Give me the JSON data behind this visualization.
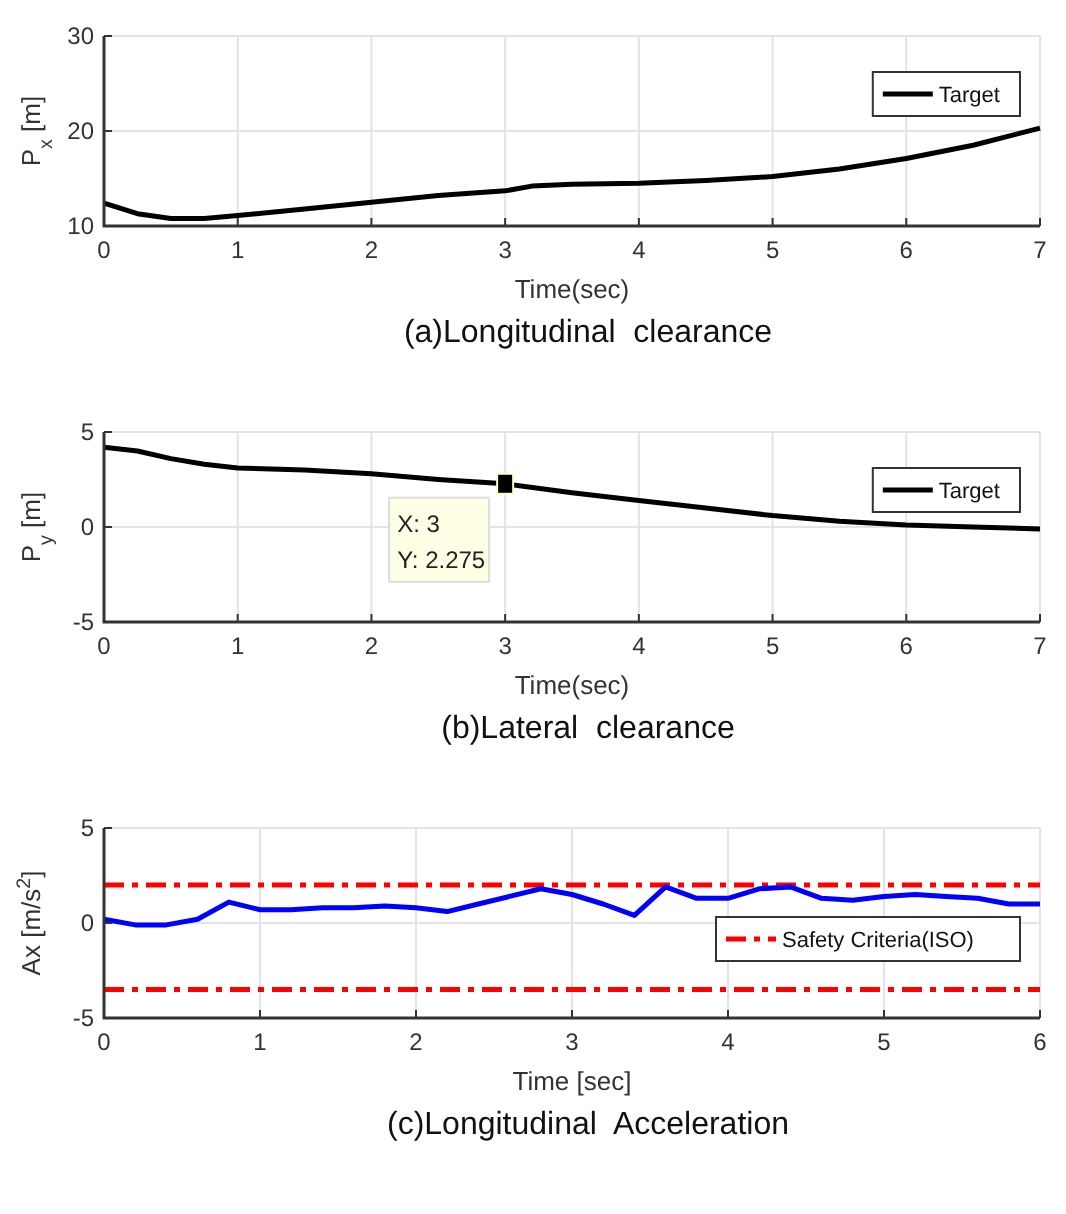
{
  "chart_data": [
    {
      "type": "line",
      "title": "(a)Longitudinal  clearance",
      "xlabel": "Time(sec)",
      "ylabel": "P$_{x}$ [m]",
      "xlim": [
        0,
        7
      ],
      "xticks": [
        0,
        1,
        2,
        3,
        4,
        5,
        6,
        7
      ],
      "ylim": [
        10,
        30
      ],
      "yticks": [
        10,
        20,
        30
      ],
      "grid": true,
      "legend": "top right",
      "line_style": "solid",
      "marker": "none",
      "series": [
        {
          "name": "Target",
          "color": "#000000",
          "x": [
            0,
            0.25,
            0.5,
            0.75,
            1,
            1.5,
            2,
            2.5,
            3,
            3.2,
            3.5,
            4,
            4.5,
            5,
            5.5,
            6,
            6.5,
            7
          ],
          "values": [
            12.4,
            11.3,
            10.8,
            10.8,
            11.1,
            11.8,
            12.5,
            13.2,
            13.7,
            14.2,
            14.4,
            14.5,
            14.8,
            15.2,
            16.0,
            17.1,
            18.5,
            20.3
          ]
        }
      ]
    },
    {
      "type": "line",
      "title": "(b)Lateral  clearance",
      "xlabel": "Time(sec)",
      "ylabel": "P$_{y}$ [m]",
      "xlim": [
        0,
        7
      ],
      "xticks": [
        0,
        1,
        2,
        3,
        4,
        5,
        6,
        7
      ],
      "ylim": [
        -5,
        5
      ],
      "yticks": [
        -5,
        0,
        5
      ],
      "grid": true,
      "legend": "top right",
      "line_style": "solid",
      "marker": "none",
      "annotations": [
        {
          "text": "X: 3\nY: 2.275",
          "x": 3,
          "y": 2.275
        }
      ],
      "series": [
        {
          "name": "Target",
          "color": "#000000",
          "x": [
            0,
            0.25,
            0.5,
            0.75,
            1,
            1.5,
            2,
            2.5,
            3,
            3.5,
            4,
            4.5,
            5,
            5.5,
            6,
            6.5,
            7
          ],
          "values": [
            4.2,
            4.0,
            3.6,
            3.3,
            3.1,
            3.0,
            2.8,
            2.5,
            2.275,
            1.8,
            1.4,
            1.0,
            0.6,
            0.3,
            0.1,
            0.0,
            -0.1
          ]
        }
      ]
    },
    {
      "type": "line",
      "title": "(c)Longitudinal  Acceleration",
      "xlabel": "Time [sec]",
      "ylabel": "Ax [m/s$^{2}$]",
      "xlim": [
        0,
        6
      ],
      "xticks": [
        0,
        1,
        2,
        3,
        4,
        5,
        6
      ],
      "ylim": [
        -5,
        5
      ],
      "yticks": [
        -5,
        0,
        5
      ],
      "grid": true,
      "legend": "right",
      "line_style": "solid",
      "marker": "none",
      "ref_lines": [
        {
          "axis": "y",
          "value": 2,
          "label": "Safety Criteria(ISO)",
          "color": "#ff0000",
          "line_style": "dashed"
        },
        {
          "axis": "y",
          "value": -3.5,
          "color": "#ff0000",
          "line_style": "dashed"
        }
      ],
      "series": [
        {
          "color": "#0000ff",
          "x": [
            0,
            0.2,
            0.4,
            0.6,
            0.8,
            1.0,
            1.2,
            1.4,
            1.6,
            1.8,
            2.0,
            2.2,
            2.4,
            2.6,
            2.8,
            3.0,
            3.2,
            3.4,
            3.6,
            3.8,
            4.0,
            4.2,
            4.4,
            4.6,
            4.8,
            5.0,
            5.2,
            5.4,
            5.6,
            5.8,
            6.0
          ],
          "values": [
            0.2,
            -0.1,
            -0.1,
            0.2,
            1.1,
            0.7,
            0.7,
            0.8,
            0.8,
            0.9,
            0.8,
            0.6,
            1.0,
            1.4,
            1.8,
            1.5,
            1.0,
            0.4,
            1.9,
            1.3,
            1.3,
            1.8,
            1.9,
            1.3,
            1.2,
            1.4,
            1.5,
            1.4,
            1.3,
            1.0,
            1.0
          ]
        }
      ]
    }
  ]
}
